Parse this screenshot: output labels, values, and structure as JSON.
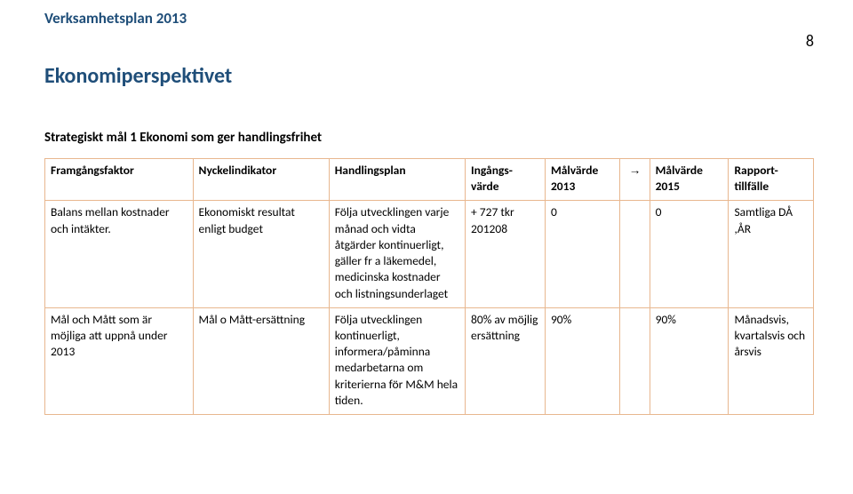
{
  "header": {
    "doc_title": "Verksamhetsplan 2013",
    "page_number": "8"
  },
  "section": {
    "heading": "Ekonomiperspektivet",
    "subheading": "Strategiskt mål 1 Ekonomi som ger handlingsfrihet"
  },
  "table": {
    "columns": [
      "Framgångsfaktor",
      "Nyckelindikator",
      "Handlingsplan",
      "Ingångs-värde",
      "Målvärde 2013",
      "→",
      "Målvärde 2015",
      "Rapport-tillfälle"
    ],
    "rows": [
      {
        "c0": "Balans mellan kostnader och intäkter.",
        "c1": "Ekonomiskt resultat enligt budget",
        "c2": "Följa utvecklingen varje månad och vidta åtgärder kontinuerligt, gäller fr a  läkemedel, medicinska kostnader och listningsunderlaget",
        "c3": "+ 727 tkr 201208",
        "c4": "0",
        "c5": "",
        "c6": "0",
        "c7": "Samtliga DÅ ,ÅR"
      },
      {
        "c0": "Mål och Mått som är möjliga att uppnå under 2013",
        "c1": "Mål o Mått-ersättning",
        "c2": "Följa utvecklingen kontinuerligt, informera/påminna medarbetarna om kriterierna för M&M hela tiden.",
        "c3": "80% av möjlig ersättning",
        "c4": "90%",
        "c5": "",
        "c6": "90%",
        "c7": "Månadsvis, kvartalsvis och årsvis"
      }
    ]
  },
  "style": {
    "border_color": "#e8b78f",
    "heading_color": "#1f4e79",
    "text_color": "#000000",
    "background_color": "#ffffff"
  }
}
